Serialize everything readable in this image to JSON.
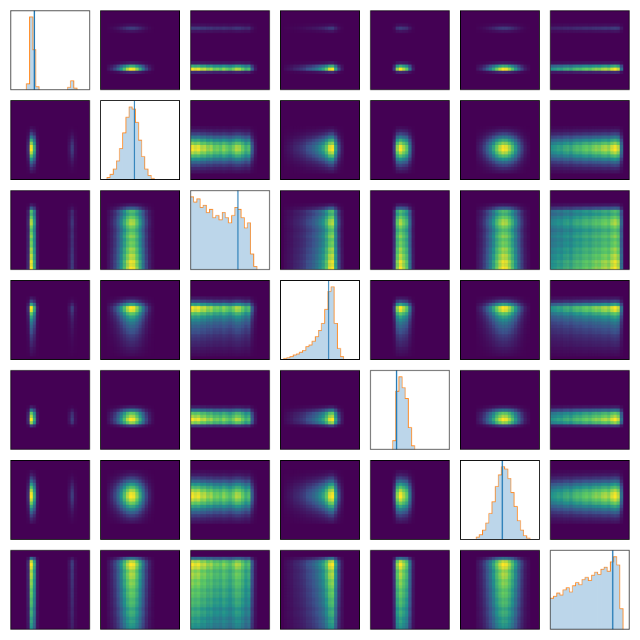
{
  "chart_data": {
    "type": "pairplot",
    "xlim": [
      0,
      1
    ],
    "bins": [
      0,
      0.04,
      0.08,
      0.12,
      0.16,
      0.2,
      0.24,
      0.28,
      0.32,
      0.36,
      0.4,
      0.44,
      0.48,
      0.52,
      0.56,
      0.6,
      0.64,
      0.68,
      0.72,
      0.76,
      0.8,
      0.84,
      0.88,
      0.92,
      0.96,
      1
    ],
    "hist_fill": "#bcd6ea",
    "hist_edge": "#ff7f0e",
    "marker_color": "#1f77b4",
    "density_background": "#440154",
    "variables": [
      {
        "counts": [
          0,
          0,
          0,
          0,
          0,
          8,
          100,
          55,
          4,
          0,
          0,
          0,
          0,
          0,
          0,
          0,
          0,
          0,
          3,
          12,
          2,
          0,
          0,
          0,
          0
        ],
        "marker": 0.3
      },
      {
        "counts": [
          0,
          0,
          2,
          5,
          10,
          18,
          30,
          45,
          60,
          70,
          68,
          55,
          38,
          22,
          10,
          4,
          1,
          0,
          0,
          0,
          0,
          0,
          0,
          0,
          0
        ],
        "marker": 0.43
      },
      {
        "counts": [
          70,
          65,
          68,
          60,
          62,
          55,
          58,
          50,
          52,
          48,
          55,
          50,
          45,
          52,
          60,
          58,
          50,
          40,
          45,
          15,
          3,
          0,
          0,
          0,
          0
        ],
        "marker": 0.6
      },
      {
        "counts": [
          0,
          1,
          2,
          3,
          5,
          6,
          8,
          10,
          14,
          16,
          20,
          25,
          32,
          40,
          55,
          75,
          80,
          40,
          12,
          3,
          0,
          0,
          0,
          0,
          0
        ],
        "marker": 0.61
      },
      {
        "counts": [
          0,
          0,
          0,
          0,
          0,
          0,
          0,
          12,
          80,
          100,
          85,
          70,
          30,
          5,
          0,
          0,
          0,
          0,
          0,
          0,
          0,
          0,
          0,
          0,
          0
        ],
        "marker": 0.33
      },
      {
        "counts": [
          0,
          0,
          0,
          0,
          0,
          2,
          4,
          8,
          14,
          22,
          32,
          45,
          55,
          62,
          60,
          52,
          40,
          28,
          16,
          8,
          3,
          1,
          0,
          0,
          0
        ],
        "marker": 0.53
      },
      {
        "counts": [
          30,
          32,
          35,
          33,
          38,
          40,
          36,
          42,
          45,
          43,
          48,
          50,
          47,
          52,
          55,
          53,
          58,
          60,
          56,
          65,
          70,
          62,
          20,
          0,
          0
        ],
        "marker": 0.79
      }
    ]
  }
}
